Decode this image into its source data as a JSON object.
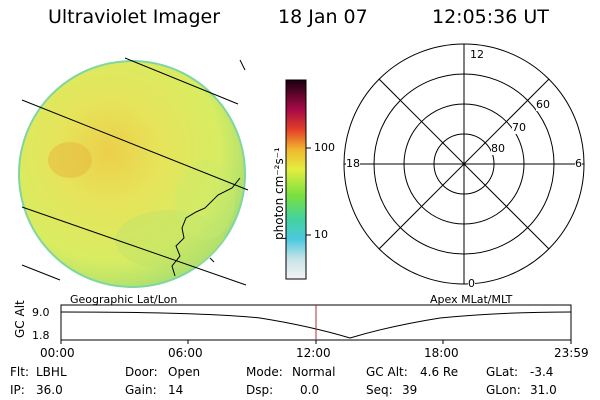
{
  "header": {
    "title": "Ultraviolet Imager",
    "date": "18 Jan 07",
    "time": "12:05:36 UT"
  },
  "colorbar": {
    "unit_label": "photon cm⁻²s⁻¹",
    "ticks": [
      "100",
      "10"
    ]
  },
  "polar": {
    "mlt_labels": [
      "12",
      "18",
      "6",
      "0"
    ],
    "lat_labels": [
      "60",
      "70",
      "80"
    ]
  },
  "panels": {
    "left_label": "Geographic Lat/Lon",
    "right_label": "Apex MLat/MLT"
  },
  "altitude_plot": {
    "axis_title": "GC Alt",
    "y_ticks": [
      "9.0",
      "1.8"
    ],
    "x_ticks": [
      "00:00",
      "06:00",
      "12:00",
      "18:00",
      "23:59"
    ]
  },
  "footer": {
    "flt_label": "Flt:",
    "flt_value": "LBHL",
    "ip_label": "IP:",
    "ip_value": "36.0",
    "door_label": "Door:",
    "door_value": "Open",
    "gain_label": "Gain:",
    "gain_value": "14",
    "mode_label": "Mode:",
    "mode_value": "Normal",
    "dsp_label": "Dsp:",
    "dsp_value": "0.0",
    "gcalt_label": "GC Alt:",
    "gcalt_value": "4.6 Re",
    "seq_label": "Seq:",
    "seq_value": "39",
    "glat_label": "GLat:",
    "glat_value": "-3.4",
    "glon_label": "GLon:",
    "glon_value": "31.0"
  },
  "colors": {
    "disk_main": "#dfe85a",
    "disk_edge": "#9fdc68",
    "time_marker": "#b03030"
  }
}
